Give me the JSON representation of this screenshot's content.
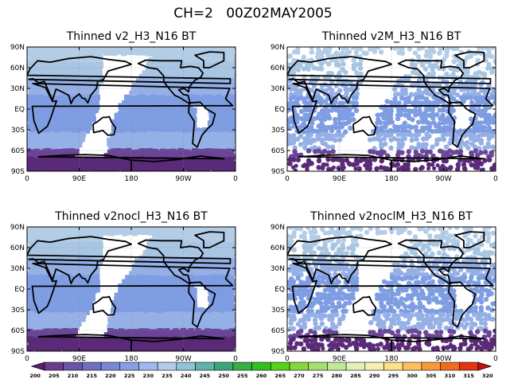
{
  "chart_data": {
    "type": "heatmap",
    "title": "CH=2   00Z02MAY2005",
    "panels": [
      {
        "title": "Thinned v2_H3_N16 BT",
        "density": "full"
      },
      {
        "title": "Thinned v2M_H3_N16 BT",
        "density": "sparse"
      },
      {
        "title": "Thinned v2nocl_H3_N16 BT",
        "density": "full"
      },
      {
        "title": "Thinned v2noclM_H3_N16 BT",
        "density": "sparse"
      }
    ],
    "x_ticks": [
      "0",
      "90E",
      "180",
      "90W",
      "0"
    ],
    "y_ticks": [
      "90N",
      "60N",
      "30N",
      "EQ",
      "30S",
      "60S",
      "90S"
    ],
    "xlim": [
      0,
      360
    ],
    "ylim": [
      -90,
      90
    ],
    "colorbar": {
      "levels": [
        200,
        205,
        210,
        215,
        220,
        225,
        230,
        235,
        240,
        245,
        250,
        255,
        260,
        265,
        270,
        275,
        280,
        285,
        290,
        295,
        300,
        305,
        310,
        315,
        320
      ],
      "colors": [
        "#5e1f6b",
        "#6b3a8a",
        "#6a55a8",
        "#6f6fc0",
        "#7a86d6",
        "#86a0e6",
        "#a0b8ee",
        "#b4cbe9",
        "#8fc3d9",
        "#5fb3a5",
        "#3ea57a",
        "#35b045",
        "#2fc21e",
        "#55d21c",
        "#85d83c",
        "#a6e06c",
        "#c3e89a",
        "#dff0b8",
        "#f6f0b0",
        "#fce08a",
        "#fcc060",
        "#f99a3a",
        "#f06b22",
        "#e23512",
        "#c8100c"
      ]
    },
    "swath_colors": {
      "tropics": "#7f9de3",
      "midlat": "#95b0e6",
      "high": "#a8c6e3",
      "polar_n": "#b3cde6",
      "polar_s": "#6a4597",
      "antarctic": "#5a2a78"
    }
  }
}
